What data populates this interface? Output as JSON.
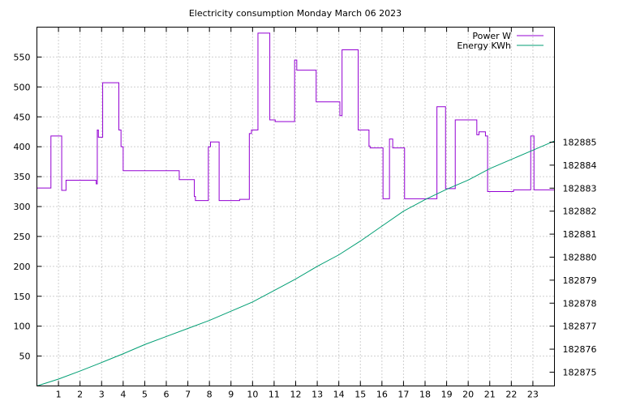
{
  "chart_data": {
    "type": "line",
    "title": "Electricity consumption Monday March 06 2023",
    "xlabel": "",
    "ylabel": "",
    "y2label": "",
    "xlim": [
      0,
      24
    ],
    "ylim": [
      0,
      600
    ],
    "y2lim": [
      182874.4,
      182890.0
    ],
    "x_ticks": [
      1,
      2,
      3,
      4,
      5,
      6,
      7,
      8,
      9,
      10,
      11,
      12,
      13,
      14,
      15,
      16,
      17,
      18,
      19,
      20,
      21,
      22,
      23
    ],
    "y_ticks": [
      50,
      100,
      150,
      200,
      250,
      300,
      350,
      400,
      450,
      500,
      550
    ],
    "y2_ticks": [
      182875,
      182876,
      182877,
      182878,
      182879,
      182880,
      182881,
      182882,
      182883,
      182884,
      182885
    ],
    "grid": true,
    "legend_position": "top-right",
    "series": [
      {
        "name": "Power W",
        "axis": "y",
        "color": "#9400d3",
        "step": true,
        "x": [
          0,
          0.65,
          1.15,
          1.35,
          2.75,
          2.8,
          2.85,
          3.05,
          3.8,
          3.9,
          4.0,
          5.4,
          6.6,
          7.0,
          7.3,
          7.35,
          7.95,
          8.05,
          8.45,
          8.5,
          9.4,
          9.85,
          9.95,
          10.25,
          10.8,
          11.05,
          11.9,
          11.95,
          12.05,
          12.55,
          12.95,
          13.9,
          14.05,
          14.15,
          14.85,
          14.9,
          15.4,
          15.45,
          16.05,
          16.35,
          16.5,
          16.9,
          17.05,
          17.25,
          18.55,
          18.95,
          19.4,
          20.3,
          20.4,
          20.5,
          20.8,
          20.9,
          21.7,
          22.1,
          22.9,
          23.05,
          23.35
        ],
        "values": [
          331,
          418,
          327,
          344,
          338,
          428,
          416,
          507,
          428,
          400,
          360,
          360,
          345,
          345,
          317,
          310,
          400,
          408,
          310,
          310,
          312,
          422,
          428,
          590,
          445,
          442,
          442,
          545,
          528,
          528,
          475,
          475,
          452,
          562,
          562,
          428,
          401,
          398,
          313,
          413,
          398,
          398,
          313,
          313,
          467,
          330,
          445,
          445,
          420,
          425,
          418,
          325,
          325,
          328,
          418,
          328,
          328
        ]
      },
      {
        "name": "Energy KWh",
        "axis": "y2",
        "color": "#009e73",
        "step": false,
        "x": [
          0,
          1,
          2,
          3,
          4,
          5,
          6,
          7,
          8,
          9,
          10,
          11,
          12,
          13,
          14,
          15,
          16,
          17,
          18,
          19,
          20,
          21,
          22,
          23,
          24
        ],
        "values": [
          182874.4,
          182874.7,
          182875.05,
          182875.42,
          182875.8,
          182876.2,
          182876.55,
          182876.9,
          182877.25,
          182877.65,
          182878.05,
          182878.55,
          182879.05,
          182879.6,
          182880.1,
          182880.7,
          182881.35,
          182882.0,
          182882.5,
          182882.95,
          182883.35,
          182883.85,
          182884.25,
          182884.65,
          182885.05
        ]
      }
    ]
  }
}
